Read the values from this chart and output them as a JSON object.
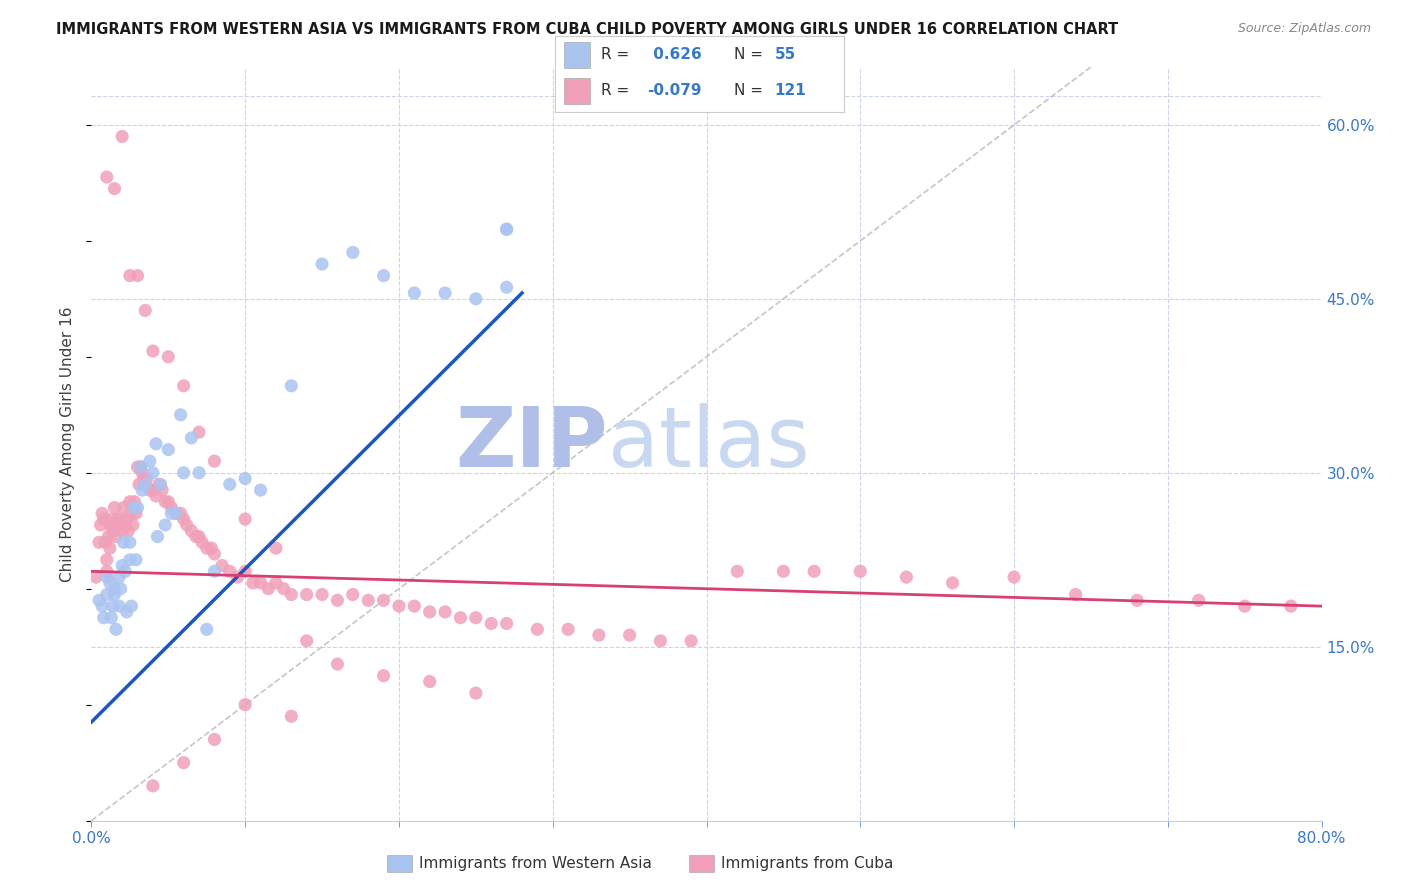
{
  "title": "IMMIGRANTS FROM WESTERN ASIA VS IMMIGRANTS FROM CUBA CHILD POVERTY AMONG GIRLS UNDER 16 CORRELATION CHART",
  "source": "Source: ZipAtlas.com",
  "ylabel": "Child Poverty Among Girls Under 16",
  "xlim": [
    0.0,
    0.8
  ],
  "ylim": [
    0.0,
    0.65
  ],
  "y_ticks_right": [
    0.15,
    0.3,
    0.45,
    0.6
  ],
  "y_tick_labels_right": [
    "15.0%",
    "30.0%",
    "45.0%",
    "60.0%"
  ],
  "color_blue": "#aac4f0",
  "color_pink": "#f0a0b8",
  "line_color_blue": "#1a56c4",
  "line_color_pink": "#d84070",
  "diag_color": "#b8b8b8",
  "title_color": "#1a1a1a",
  "source_color": "#888888",
  "axis_color": "#3878c8",
  "background_color": "#ffffff",
  "grid_color": "#ccd4e8",
  "watermark_zip_color": "#c0cce8",
  "watermark_atlas_color": "#a8bce0",
  "blue_line_x": [
    0.0,
    0.28
  ],
  "blue_line_y": [
    0.085,
    0.455
  ],
  "pink_line_x": [
    0.0,
    0.8
  ],
  "pink_line_y": [
    0.215,
    0.185
  ],
  "diag_line_x": [
    0.0,
    0.65
  ],
  "diag_line_y": [
    0.0,
    0.65
  ],
  "scatter_blue_x": [
    0.005,
    0.007,
    0.008,
    0.01,
    0.01,
    0.012,
    0.013,
    0.014,
    0.015,
    0.015,
    0.016,
    0.018,
    0.018,
    0.019,
    0.02,
    0.021,
    0.022,
    0.023,
    0.025,
    0.025,
    0.026,
    0.028,
    0.029,
    0.03,
    0.032,
    0.033,
    0.035,
    0.038,
    0.04,
    0.042,
    0.043,
    0.045,
    0.048,
    0.05,
    0.052,
    0.055,
    0.058,
    0.06,
    0.065,
    0.07,
    0.075,
    0.08,
    0.09,
    0.1,
    0.11,
    0.13,
    0.15,
    0.17,
    0.19,
    0.21,
    0.23,
    0.25,
    0.27,
    0.27,
    0.27
  ],
  "scatter_blue_y": [
    0.19,
    0.185,
    0.175,
    0.21,
    0.195,
    0.205,
    0.175,
    0.185,
    0.195,
    0.2,
    0.165,
    0.21,
    0.185,
    0.2,
    0.22,
    0.24,
    0.215,
    0.18,
    0.24,
    0.225,
    0.185,
    0.27,
    0.225,
    0.27,
    0.305,
    0.285,
    0.29,
    0.31,
    0.3,
    0.325,
    0.245,
    0.29,
    0.255,
    0.32,
    0.265,
    0.265,
    0.35,
    0.3,
    0.33,
    0.3,
    0.165,
    0.215,
    0.29,
    0.295,
    0.285,
    0.375,
    0.48,
    0.49,
    0.47,
    0.455,
    0.455,
    0.45,
    0.51,
    0.51,
    0.46
  ],
  "scatter_pink_x": [
    0.003,
    0.005,
    0.006,
    0.007,
    0.008,
    0.009,
    0.01,
    0.01,
    0.011,
    0.012,
    0.012,
    0.013,
    0.014,
    0.015,
    0.015,
    0.016,
    0.017,
    0.018,
    0.019,
    0.02,
    0.021,
    0.022,
    0.023,
    0.024,
    0.025,
    0.026,
    0.027,
    0.028,
    0.029,
    0.03,
    0.031,
    0.032,
    0.033,
    0.034,
    0.035,
    0.036,
    0.038,
    0.04,
    0.042,
    0.044,
    0.046,
    0.048,
    0.05,
    0.052,
    0.055,
    0.058,
    0.06,
    0.062,
    0.065,
    0.068,
    0.07,
    0.072,
    0.075,
    0.078,
    0.08,
    0.085,
    0.09,
    0.095,
    0.1,
    0.105,
    0.11,
    0.115,
    0.12,
    0.125,
    0.13,
    0.14,
    0.15,
    0.16,
    0.17,
    0.18,
    0.19,
    0.2,
    0.21,
    0.22,
    0.23,
    0.24,
    0.25,
    0.26,
    0.27,
    0.29,
    0.31,
    0.33,
    0.35,
    0.37,
    0.39,
    0.42,
    0.45,
    0.47,
    0.5,
    0.53,
    0.56,
    0.6,
    0.64,
    0.68,
    0.72,
    0.75,
    0.78,
    0.01,
    0.015,
    0.02,
    0.025,
    0.03,
    0.035,
    0.04,
    0.05,
    0.06,
    0.07,
    0.08,
    0.1,
    0.12,
    0.14,
    0.16,
    0.19,
    0.22,
    0.25,
    0.04,
    0.06,
    0.08,
    0.1,
    0.13
  ],
  "scatter_pink_y": [
    0.21,
    0.24,
    0.255,
    0.265,
    0.26,
    0.24,
    0.225,
    0.215,
    0.245,
    0.255,
    0.235,
    0.26,
    0.25,
    0.27,
    0.255,
    0.245,
    0.26,
    0.255,
    0.26,
    0.25,
    0.27,
    0.255,
    0.26,
    0.25,
    0.275,
    0.265,
    0.255,
    0.275,
    0.265,
    0.305,
    0.29,
    0.305,
    0.3,
    0.295,
    0.29,
    0.295,
    0.285,
    0.285,
    0.28,
    0.29,
    0.285,
    0.275,
    0.275,
    0.27,
    0.265,
    0.265,
    0.26,
    0.255,
    0.25,
    0.245,
    0.245,
    0.24,
    0.235,
    0.235,
    0.23,
    0.22,
    0.215,
    0.21,
    0.215,
    0.205,
    0.205,
    0.2,
    0.205,
    0.2,
    0.195,
    0.195,
    0.195,
    0.19,
    0.195,
    0.19,
    0.19,
    0.185,
    0.185,
    0.18,
    0.18,
    0.175,
    0.175,
    0.17,
    0.17,
    0.165,
    0.165,
    0.16,
    0.16,
    0.155,
    0.155,
    0.215,
    0.215,
    0.215,
    0.215,
    0.21,
    0.205,
    0.21,
    0.195,
    0.19,
    0.19,
    0.185,
    0.185,
    0.555,
    0.545,
    0.59,
    0.47,
    0.47,
    0.44,
    0.405,
    0.4,
    0.375,
    0.335,
    0.31,
    0.26,
    0.235,
    0.155,
    0.135,
    0.125,
    0.12,
    0.11,
    0.03,
    0.05,
    0.07,
    0.1,
    0.09
  ]
}
